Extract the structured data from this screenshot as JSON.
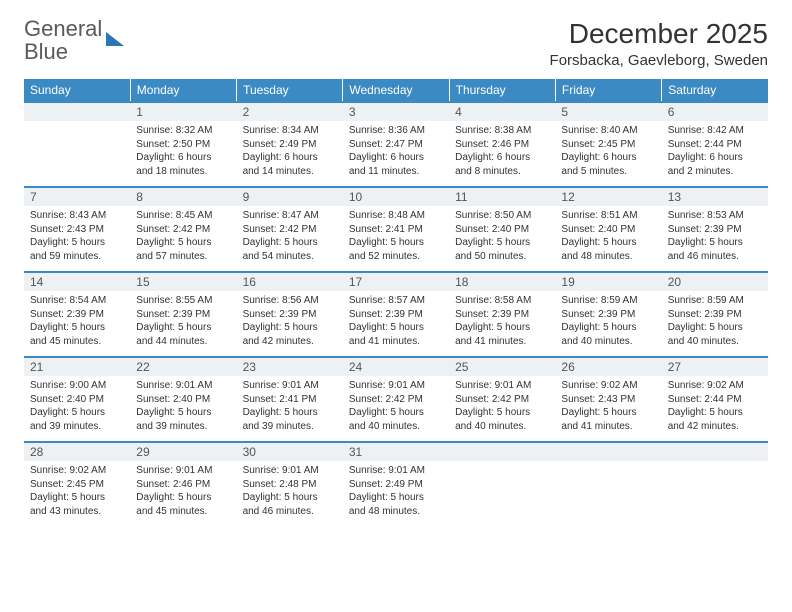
{
  "logo": {
    "text_general": "General",
    "text_blue": "Blue"
  },
  "header": {
    "month_title": "December 2025",
    "location": "Forsbacka, Gaevleborg, Sweden"
  },
  "colors": {
    "header_bg": "#3b8ac4",
    "header_fg": "#ffffff",
    "band_bg": "#eef1f3",
    "rule": "#3b8ac4",
    "text": "#333333",
    "logo_gray": "#5a5a5a",
    "logo_blue": "#2e75b6"
  },
  "typography": {
    "month_title_pt": 21,
    "location_pt": 11,
    "dow_pt": 9,
    "body_pt": 7.5
  },
  "calendar": {
    "days_of_week": [
      "Sunday",
      "Monday",
      "Tuesday",
      "Wednesday",
      "Thursday",
      "Friday",
      "Saturday"
    ],
    "weeks": [
      [
        null,
        {
          "n": "1",
          "sr": "8:32 AM",
          "ss": "2:50 PM",
          "dl": "6 hours and 18 minutes."
        },
        {
          "n": "2",
          "sr": "8:34 AM",
          "ss": "2:49 PM",
          "dl": "6 hours and 14 minutes."
        },
        {
          "n": "3",
          "sr": "8:36 AM",
          "ss": "2:47 PM",
          "dl": "6 hours and 11 minutes."
        },
        {
          "n": "4",
          "sr": "8:38 AM",
          "ss": "2:46 PM",
          "dl": "6 hours and 8 minutes."
        },
        {
          "n": "5",
          "sr": "8:40 AM",
          "ss": "2:45 PM",
          "dl": "6 hours and 5 minutes."
        },
        {
          "n": "6",
          "sr": "8:42 AM",
          "ss": "2:44 PM",
          "dl": "6 hours and 2 minutes."
        }
      ],
      [
        {
          "n": "7",
          "sr": "8:43 AM",
          "ss": "2:43 PM",
          "dl": "5 hours and 59 minutes."
        },
        {
          "n": "8",
          "sr": "8:45 AM",
          "ss": "2:42 PM",
          "dl": "5 hours and 57 minutes."
        },
        {
          "n": "9",
          "sr": "8:47 AM",
          "ss": "2:42 PM",
          "dl": "5 hours and 54 minutes."
        },
        {
          "n": "10",
          "sr": "8:48 AM",
          "ss": "2:41 PM",
          "dl": "5 hours and 52 minutes."
        },
        {
          "n": "11",
          "sr": "8:50 AM",
          "ss": "2:40 PM",
          "dl": "5 hours and 50 minutes."
        },
        {
          "n": "12",
          "sr": "8:51 AM",
          "ss": "2:40 PM",
          "dl": "5 hours and 48 minutes."
        },
        {
          "n": "13",
          "sr": "8:53 AM",
          "ss": "2:39 PM",
          "dl": "5 hours and 46 minutes."
        }
      ],
      [
        {
          "n": "14",
          "sr": "8:54 AM",
          "ss": "2:39 PM",
          "dl": "5 hours and 45 minutes."
        },
        {
          "n": "15",
          "sr": "8:55 AM",
          "ss": "2:39 PM",
          "dl": "5 hours and 44 minutes."
        },
        {
          "n": "16",
          "sr": "8:56 AM",
          "ss": "2:39 PM",
          "dl": "5 hours and 42 minutes."
        },
        {
          "n": "17",
          "sr": "8:57 AM",
          "ss": "2:39 PM",
          "dl": "5 hours and 41 minutes."
        },
        {
          "n": "18",
          "sr": "8:58 AM",
          "ss": "2:39 PM",
          "dl": "5 hours and 41 minutes."
        },
        {
          "n": "19",
          "sr": "8:59 AM",
          "ss": "2:39 PM",
          "dl": "5 hours and 40 minutes."
        },
        {
          "n": "20",
          "sr": "8:59 AM",
          "ss": "2:39 PM",
          "dl": "5 hours and 40 minutes."
        }
      ],
      [
        {
          "n": "21",
          "sr": "9:00 AM",
          "ss": "2:40 PM",
          "dl": "5 hours and 39 minutes."
        },
        {
          "n": "22",
          "sr": "9:01 AM",
          "ss": "2:40 PM",
          "dl": "5 hours and 39 minutes."
        },
        {
          "n": "23",
          "sr": "9:01 AM",
          "ss": "2:41 PM",
          "dl": "5 hours and 39 minutes."
        },
        {
          "n": "24",
          "sr": "9:01 AM",
          "ss": "2:42 PM",
          "dl": "5 hours and 40 minutes."
        },
        {
          "n": "25",
          "sr": "9:01 AM",
          "ss": "2:42 PM",
          "dl": "5 hours and 40 minutes."
        },
        {
          "n": "26",
          "sr": "9:02 AM",
          "ss": "2:43 PM",
          "dl": "5 hours and 41 minutes."
        },
        {
          "n": "27",
          "sr": "9:02 AM",
          "ss": "2:44 PM",
          "dl": "5 hours and 42 minutes."
        }
      ],
      [
        {
          "n": "28",
          "sr": "9:02 AM",
          "ss": "2:45 PM",
          "dl": "5 hours and 43 minutes."
        },
        {
          "n": "29",
          "sr": "9:01 AM",
          "ss": "2:46 PM",
          "dl": "5 hours and 45 minutes."
        },
        {
          "n": "30",
          "sr": "9:01 AM",
          "ss": "2:48 PM",
          "dl": "5 hours and 46 minutes."
        },
        {
          "n": "31",
          "sr": "9:01 AM",
          "ss": "2:49 PM",
          "dl": "5 hours and 48 minutes."
        },
        null,
        null,
        null
      ]
    ]
  },
  "labels": {
    "sunrise_prefix": "Sunrise: ",
    "sunset_prefix": "Sunset: ",
    "daylight_prefix": "Daylight: "
  }
}
